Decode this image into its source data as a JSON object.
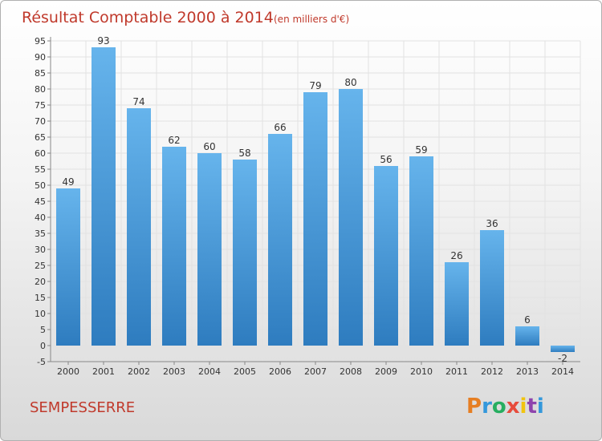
{
  "chart_data": {
    "type": "bar",
    "title": "Résultat Comptable 2000 à 2014",
    "unit_label": "(en milliers d'€)",
    "categories": [
      "2000",
      "2001",
      "2002",
      "2003",
      "2004",
      "2005",
      "2006",
      "2007",
      "2008",
      "2009",
      "2010",
      "2011",
      "2012",
      "2013",
      "2014"
    ],
    "values": [
      49,
      93,
      74,
      62,
      60,
      58,
      66,
      79,
      80,
      56,
      59,
      26,
      36,
      6,
      -2
    ],
    "ylim": [
      -5,
      95
    ],
    "yticks": [
      -5,
      0,
      5,
      10,
      15,
      20,
      25,
      30,
      35,
      40,
      45,
      50,
      55,
      60,
      65,
      70,
      75,
      80,
      85,
      90,
      95
    ],
    "grid": true,
    "bar_color": "#4a9fdf",
    "xlabel": "",
    "ylabel": ""
  },
  "footer": {
    "place_name": "SEMPESSERRE",
    "logo_text": "Proxiti"
  },
  "colors": {
    "title": "#c0392b",
    "bar_light": "#65b2ea",
    "bar_dark": "#2f7fc1"
  }
}
